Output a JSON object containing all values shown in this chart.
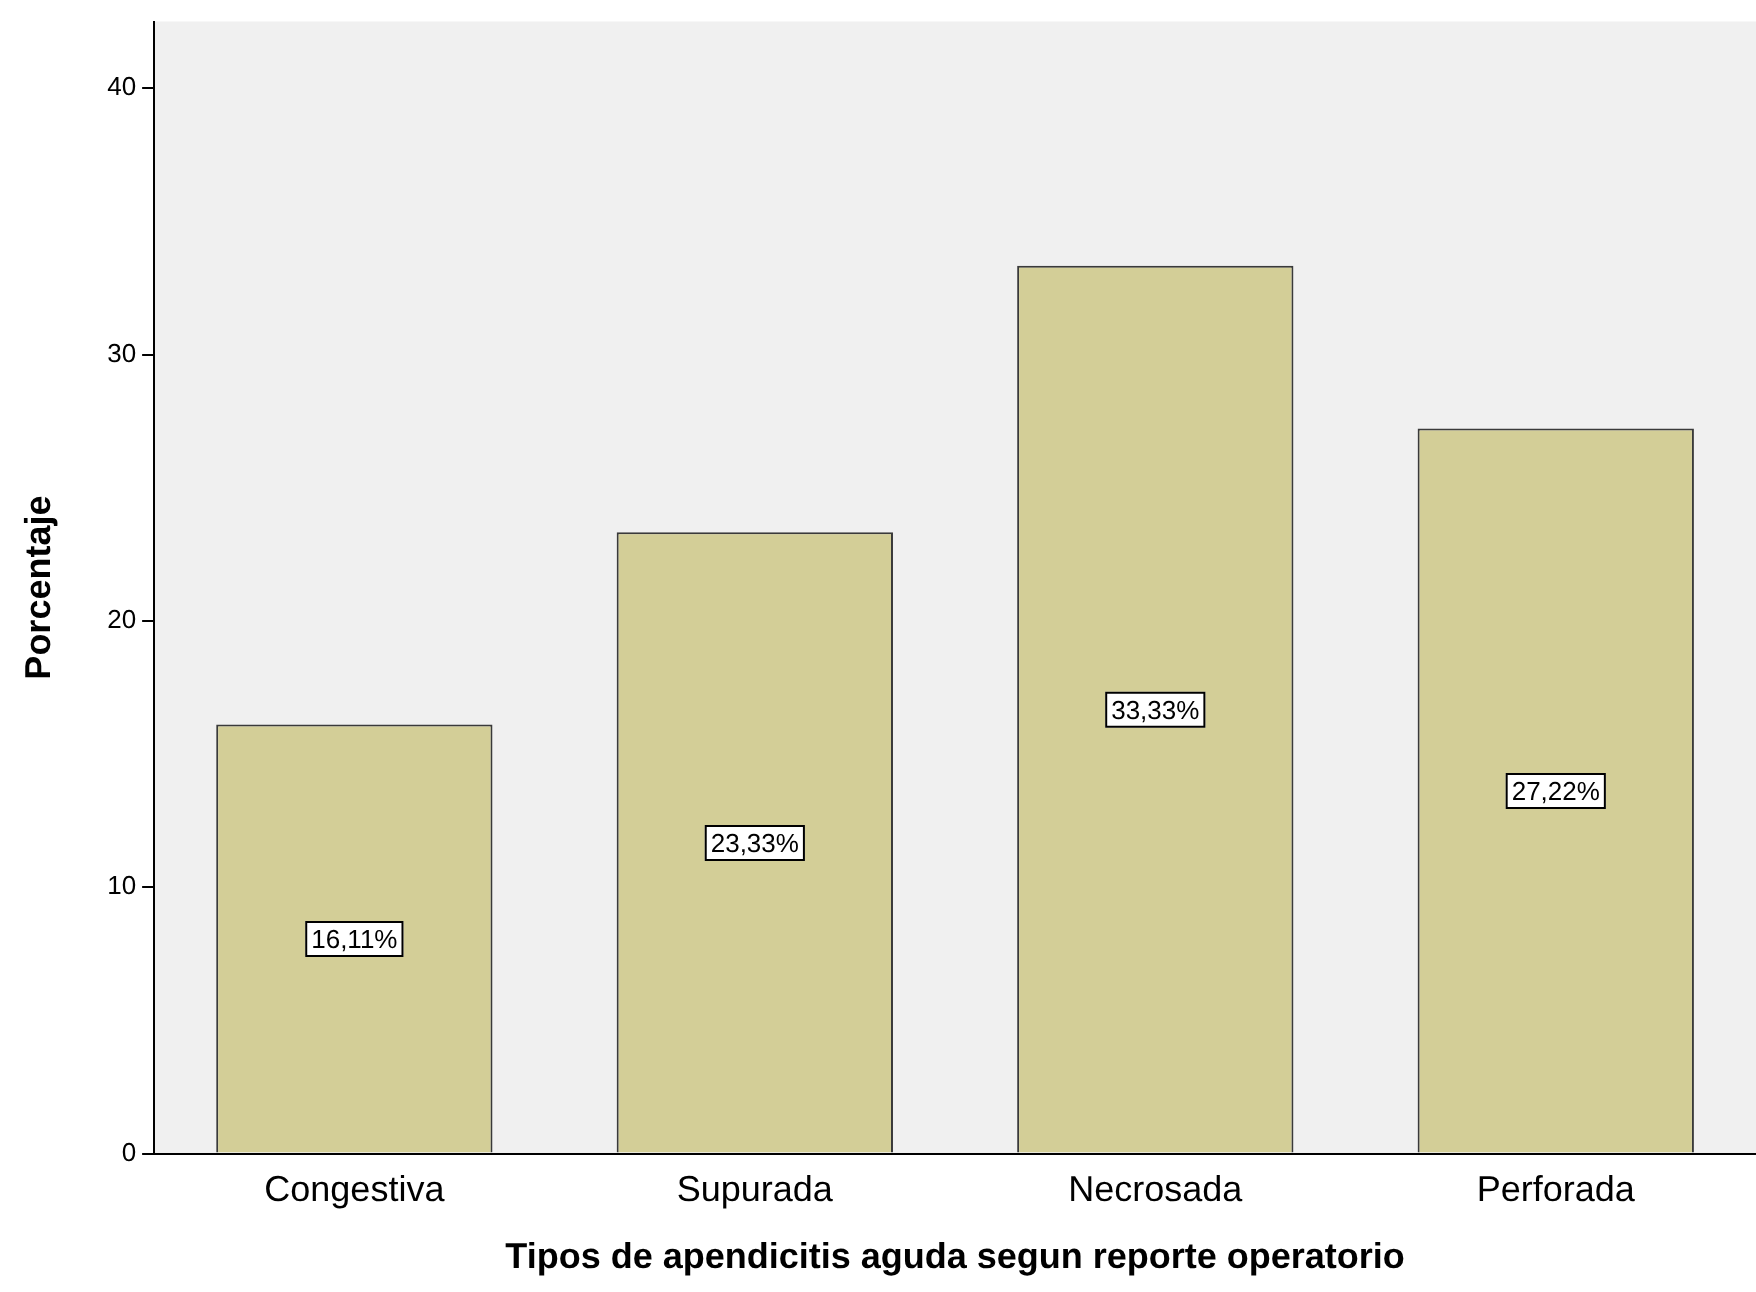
{
  "chart_data": {
    "type": "bar",
    "xlabel": "Tipos de apendicitis aguda segun reporte operatorio",
    "ylabel": "Porcentaje",
    "categories": [
      "Congestiva",
      "Supurada",
      "Necrosada",
      "Perforada"
    ],
    "values": [
      16.11,
      23.33,
      33.33,
      27.22
    ],
    "value_labels": [
      "16,11%",
      "23,33%",
      "33,33%",
      "27,22%"
    ],
    "color": "#d3ce97",
    "ylim": [
      0,
      42.5
    ],
    "yticks": [
      0,
      10,
      20,
      30,
      40
    ],
    "grid": false,
    "legend": false
  }
}
